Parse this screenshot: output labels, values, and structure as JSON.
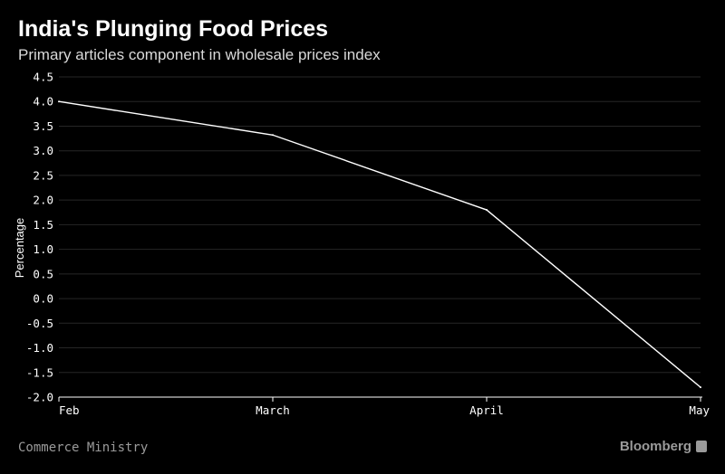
{
  "header": {
    "title": "India's Plunging Food Prices",
    "subtitle": "Primary articles component in wholesale prices index"
  },
  "footer": {
    "source": "Commerce Ministry",
    "brand": "Bloomberg",
    "brand_icon": "bloomberg-logo-icon"
  },
  "colors": {
    "background": "#000000",
    "line": "#ffffff",
    "grid": "#262626",
    "axis_text": "#ffffff",
    "muted_text": "#9a9a9a"
  },
  "chart_data": {
    "type": "line",
    "title": "India's Plunging Food Prices",
    "subtitle": "Primary articles component in wholesale prices index",
    "xlabel": "",
    "ylabel": "Percentage",
    "categories": [
      "Feb",
      "March",
      "April",
      "May"
    ],
    "series": [
      {
        "name": "Primary articles",
        "values": [
          4.0,
          3.32,
          1.8,
          -1.8
        ]
      }
    ],
    "ylim": [
      -2.0,
      4.5
    ],
    "yticks": [
      "4.5",
      "4.0",
      "3.5",
      "3.0",
      "2.5",
      "2.0",
      "1.5",
      "1.0",
      "0.5",
      "0.0",
      "-0.5",
      "-1.0",
      "-1.5",
      "-2.0"
    ],
    "grid": true,
    "legend": "none"
  }
}
